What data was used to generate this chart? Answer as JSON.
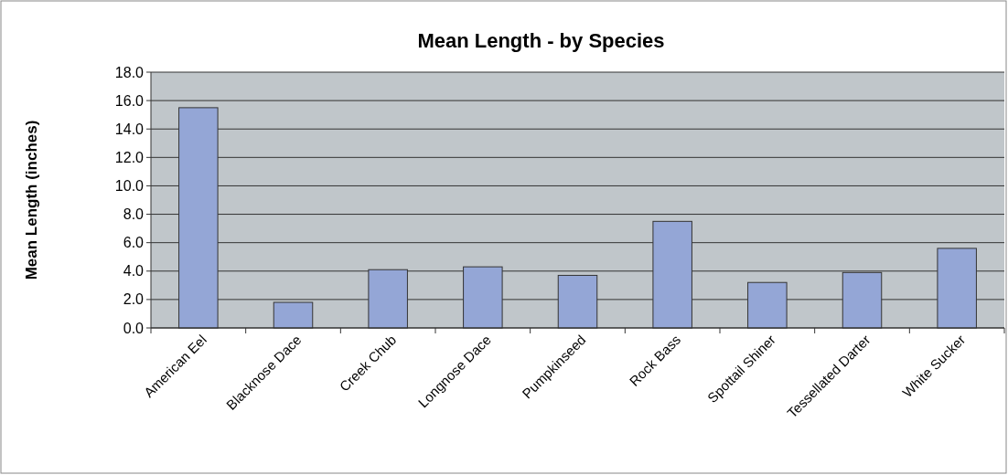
{
  "chart_data": {
    "type": "bar",
    "title": "Mean Length - by Species",
    "ylabel": "Mean Length (inches)",
    "categories": [
      "American Eel",
      "Blacknose Dace",
      "Creek Chub",
      "Longnose Dace",
      "Pumpkinseed",
      "Rock Bass",
      "Spottail Shiner",
      "Tessellated Darter",
      "White Sucker"
    ],
    "values": [
      15.5,
      1.8,
      4.1,
      4.3,
      3.7,
      7.5,
      3.2,
      3.9,
      5.6
    ],
    "color": "#94a6d6",
    "ylim": [
      0,
      18
    ],
    "yticks": [
      {
        "value": 0,
        "label": "0.0"
      },
      {
        "value": 2,
        "label": "2.0"
      },
      {
        "value": 4,
        "label": "4.0"
      },
      {
        "value": 6,
        "label": "6.0"
      },
      {
        "value": 8,
        "label": "8.0"
      },
      {
        "value": 10,
        "label": "10.0"
      },
      {
        "value": 12,
        "label": "12.0"
      },
      {
        "value": 14,
        "label": "14.0"
      },
      {
        "value": 16,
        "label": "16.0"
      },
      {
        "value": 18,
        "label": "18.0"
      }
    ],
    "grid": "y"
  }
}
